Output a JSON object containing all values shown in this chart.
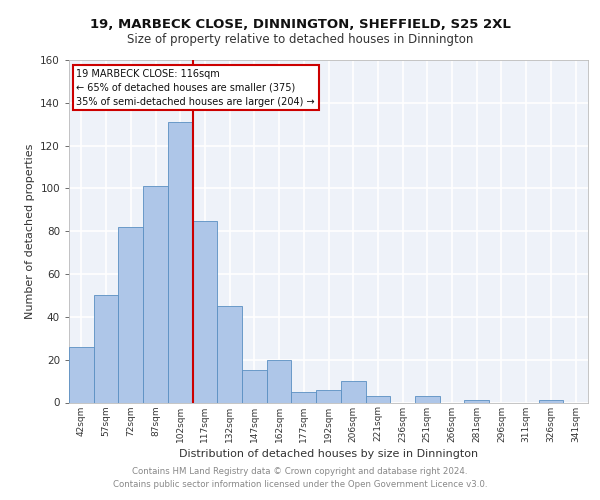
{
  "title1": "19, MARBECK CLOSE, DINNINGTON, SHEFFIELD, S25 2XL",
  "title2": "Size of property relative to detached houses in Dinnington",
  "xlabel": "Distribution of detached houses by size in Dinnington",
  "ylabel": "Number of detached properties",
  "bin_labels": [
    "42sqm",
    "57sqm",
    "72sqm",
    "87sqm",
    "102sqm",
    "117sqm",
    "132sqm",
    "147sqm",
    "162sqm",
    "177sqm",
    "192sqm",
    "206sqm",
    "221sqm",
    "236sqm",
    "251sqm",
    "266sqm",
    "281sqm",
    "296sqm",
    "311sqm",
    "326sqm",
    "341sqm"
  ],
  "bar_heights": [
    26,
    50,
    82,
    101,
    131,
    85,
    45,
    15,
    20,
    5,
    6,
    10,
    3,
    0,
    3,
    0,
    1,
    0,
    0,
    1,
    0
  ],
  "bar_color": "#aec6e8",
  "bar_edge_color": "#5a8fc2",
  "property_line_color": "#cc0000",
  "annotation_line1": "19 MARBECK CLOSE: 116sqm",
  "annotation_line2": "← 65% of detached houses are smaller (375)",
  "annotation_line3": "35% of semi-detached houses are larger (204) →",
  "annotation_box_color": "#cc0000",
  "ylim": [
    0,
    160
  ],
  "yticks": [
    0,
    20,
    40,
    60,
    80,
    100,
    120,
    140,
    160
  ],
  "footer1": "Contains HM Land Registry data © Crown copyright and database right 2024.",
  "footer2": "Contains public sector information licensed under the Open Government Licence v3.0.",
  "background_color": "#eef2f9",
  "grid_color": "#ffffff"
}
